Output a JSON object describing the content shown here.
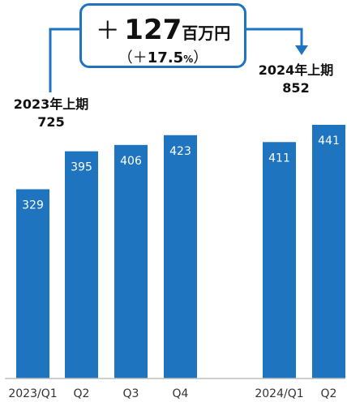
{
  "callout": {
    "sign": "＋",
    "value": "127",
    "unit": "百万円",
    "pct_open": "（＋",
    "pct": "17.5",
    "pct_unit": "%",
    "pct_close": "）"
  },
  "totals": {
    "h1_2023_label": "2023年上期",
    "h1_2023_value": "725",
    "h1_2024_label": "2024年上期",
    "h1_2024_value": "852"
  },
  "colors": {
    "bar": "#1f74bf",
    "arrow": "#1f74bf",
    "axis": "#bfbfbf",
    "bar_label": "#ffffff",
    "tick_label": "#333333"
  },
  "chart_data": {
    "type": "bar",
    "categories": [
      "2023/Q1",
      "Q2",
      "Q3",
      "Q4",
      "2024/Q1",
      "Q2"
    ],
    "values": [
      329,
      395,
      406,
      423,
      411,
      441
    ],
    "title": "",
    "xlabel": "",
    "ylabel": "",
    "ylim": [
      0,
      441
    ],
    "grid": false,
    "legend": "none"
  }
}
